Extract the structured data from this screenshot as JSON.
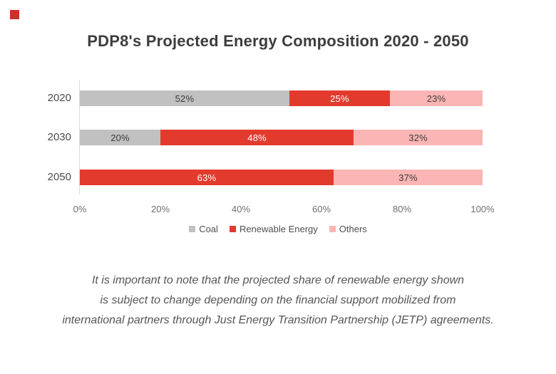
{
  "page": {
    "background_color": "#ffffff",
    "brand_mark_color": "#cf3028"
  },
  "chart_data": {
    "type": "bar",
    "orientation": "horizontal",
    "stacked": true,
    "title": "PDP8's Projected Energy Composition 2020 - 2050",
    "categories": [
      "2020",
      "2030",
      "2050"
    ],
    "series": [
      {
        "name": "Coal",
        "color": "#c1c1c1",
        "label_color": "#3b3b3b",
        "values": [
          52,
          20,
          0
        ]
      },
      {
        "name": "Renewable Energy",
        "color": "#e23b2e",
        "label_color": "#ffffff",
        "values": [
          25,
          48,
          63
        ]
      },
      {
        "name": "Others",
        "color": "#fbb5b5",
        "label_color": "#3b3b3b",
        "values": [
          23,
          32,
          37
        ]
      }
    ],
    "value_suffix": "%",
    "x_axis": {
      "min": 0,
      "max": 100,
      "ticks": [
        "0%",
        "20%",
        "40%",
        "60%",
        "80%",
        "100%"
      ]
    },
    "grid": false,
    "legend_position": "bottom"
  },
  "footnote": {
    "lines": [
      "It is important to note that the projected share of renewable energy shown",
      "is subject to change depending on the financial support mobilized from",
      "international partners through Just Energy Transition Partnership (JETP) agreements."
    ]
  }
}
